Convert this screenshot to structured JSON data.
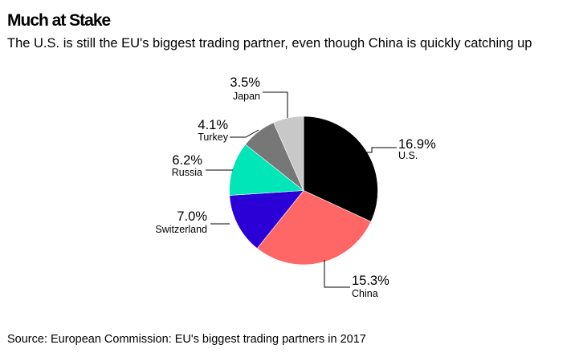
{
  "header": {
    "title": "Much at Stake",
    "subtitle": "The U.S. is still the EU's biggest trading partner, even though China is quickly catching up"
  },
  "footer": {
    "source": "Source: European Commission: EU's biggest trading partners in 2017"
  },
  "chart_data": {
    "type": "pie",
    "title": "Much at Stake",
    "subtitle": "The U.S. is still the EU's biggest trading partner, even though China is quickly catching up",
    "unit": "%",
    "slices": [
      {
        "label": "U.S.",
        "value": 16.9,
        "value_label": "16.9%",
        "color": "#000000"
      },
      {
        "label": "China",
        "value": 15.3,
        "value_label": "15.3%",
        "color": "#ff6666"
      },
      {
        "label": "Switzerland",
        "value": 7.0,
        "value_label": "7.0%",
        "color": "#2b00d6"
      },
      {
        "label": "Russia",
        "value": 6.2,
        "value_label": "6.2%",
        "color": "#00e6b8"
      },
      {
        "label": "Turkey",
        "value": 4.1,
        "value_label": "4.1%",
        "color": "#777777"
      },
      {
        "label": "Japan",
        "value": 3.5,
        "value_label": "3.5%",
        "color": "#c8c8c8"
      }
    ]
  }
}
